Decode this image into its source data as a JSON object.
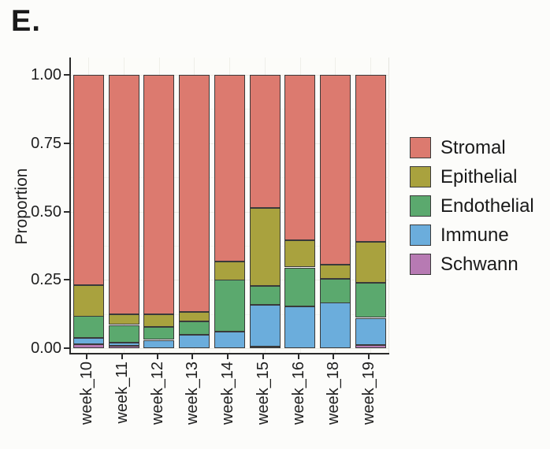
{
  "panel_label": "E.",
  "chart_data": {
    "type": "bar",
    "stacked": true,
    "title": "",
    "xlabel": "",
    "ylabel": "Proportion",
    "ylim": [
      0,
      1
    ],
    "yticks": [
      0,
      0.25,
      0.5,
      0.75,
      1
    ],
    "ytick_labels": [
      "0.00",
      "0.25",
      "0.50",
      "0.75",
      "1.00"
    ],
    "grid": "faint horizontal major and minor gridlines, faint vertical category gridlines",
    "categories": [
      "week_10",
      "week_11",
      "week_12",
      "week_13",
      "week_14",
      "week_15",
      "week_16",
      "week_18",
      "week_19"
    ],
    "stack_order_bottom_to_top": [
      "Schwann",
      "Immune",
      "Endothelial",
      "Epithelial",
      "Stromal"
    ],
    "series": [
      {
        "name": "Stromal",
        "color": "#DC7A6F",
        "values": [
          0.769,
          0.877,
          0.876,
          0.868,
          0.682,
          0.487,
          0.606,
          0.694,
          0.611
        ]
      },
      {
        "name": "Epithelial",
        "color": "#A9A23E",
        "values": [
          0.114,
          0.038,
          0.047,
          0.034,
          0.068,
          0.285,
          0.099,
          0.051,
          0.151
        ]
      },
      {
        "name": "Endothelial",
        "color": "#5BA96E",
        "values": [
          0.08,
          0.064,
          0.047,
          0.05,
          0.19,
          0.069,
          0.141,
          0.089,
          0.128
        ]
      },
      {
        "name": "Immune",
        "color": "#6BADDC",
        "values": [
          0.022,
          0.011,
          0.03,
          0.048,
          0.06,
          0.152,
          0.154,
          0.166,
          0.098
        ]
      },
      {
        "name": "Schwann",
        "color": "#B77AB3",
        "values": [
          0.015,
          0.01,
          0.0,
          0.0,
          0.0,
          0.007,
          0.0,
          0.0,
          0.012
        ]
      }
    ],
    "legend": {
      "position": "right",
      "entries": [
        "Stromal",
        "Epithelial",
        "Endothelial",
        "Immune",
        "Schwann"
      ]
    },
    "bar_outline_color": "#3A3A3A"
  }
}
